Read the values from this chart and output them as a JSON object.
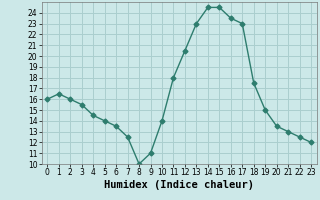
{
  "x": [
    0,
    1,
    2,
    3,
    4,
    5,
    6,
    7,
    8,
    9,
    10,
    11,
    12,
    13,
    14,
    15,
    16,
    17,
    18,
    19,
    20,
    21,
    22,
    23
  ],
  "y": [
    16.0,
    16.5,
    16.0,
    15.5,
    14.5,
    14.0,
    13.5,
    12.5,
    10.0,
    11.0,
    14.0,
    18.0,
    20.5,
    23.0,
    24.5,
    24.5,
    23.5,
    23.0,
    17.5,
    15.0,
    13.5,
    13.0,
    12.5,
    12.0
  ],
  "line_color": "#2e7d6e",
  "marker": "D",
  "marker_size": 2.5,
  "bg_color": "#cce8e8",
  "grid_color": "#aacece",
  "xlabel": "Humidex (Indice chaleur)",
  "xlim": [
    -0.5,
    23.5
  ],
  "ylim": [
    10,
    25
  ],
  "yticks": [
    10,
    11,
    12,
    13,
    14,
    15,
    16,
    17,
    18,
    19,
    20,
    21,
    22,
    23,
    24
  ],
  "xticks": [
    0,
    1,
    2,
    3,
    4,
    5,
    6,
    7,
    8,
    9,
    10,
    11,
    12,
    13,
    14,
    15,
    16,
    17,
    18,
    19,
    20,
    21,
    22,
    23
  ],
  "tick_fontsize": 5.5,
  "xlabel_fontsize": 7.5
}
